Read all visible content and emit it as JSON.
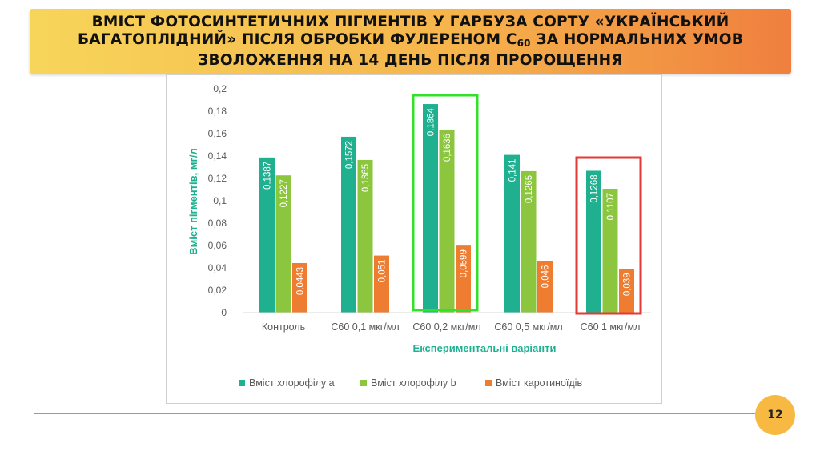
{
  "slide": {
    "title_prefix": "Вміст фотосинтетичних пігментів у гарбуза сорту «Український багатоплідний» після обробки фулереном С",
    "title_subscript": "60",
    "title_suffix": " за нормальних умов зволоження на 14 день після пророщення",
    "page_number": "12"
  },
  "chart_data": {
    "type": "bar",
    "categories": [
      "Контроль",
      "С60 0,1 мкг/мл",
      "С60 0,2 мкг/мл",
      "С60 0,5 мкг/мл",
      "С60 1 мкг/мл"
    ],
    "series": [
      {
        "name": "Вміст хлорофілу а",
        "values": [
          0.1387,
          0.1572,
          0.1864,
          0.141,
          0.1268
        ],
        "labels": [
          "0,1387",
          "0,1572",
          "0,1864",
          "0,141",
          "0,1268"
        ],
        "color": "#1fb18f"
      },
      {
        "name": "Вміст хлорофілу b",
        "values": [
          0.1227,
          0.1365,
          0.1636,
          0.1265,
          0.1107
        ],
        "labels": [
          "0,1227",
          "0,1365",
          "0,1636",
          "0,1265",
          "0,1107"
        ],
        "color": "#8cc63f"
      },
      {
        "name": "Вміст каротиноїдів",
        "values": [
          0.0443,
          0.051,
          0.0599,
          0.046,
          0.039
        ],
        "labels": [
          "0,0443",
          "0,051",
          "0,0599",
          "0,046",
          "0,039"
        ],
        "color": "#ee7d31"
      }
    ],
    "xlabel": "Експериментальні варіанти",
    "ylabel": "Вміст пігментів, мг/л",
    "ylim": [
      0,
      0.2
    ],
    "yticks": [
      0,
      0.02,
      0.04,
      0.06,
      0.08,
      0.1,
      0.12,
      0.14,
      0.16,
      0.18,
      0.2
    ],
    "ytick_labels": [
      "0",
      "0,02",
      "0,04",
      "0,06",
      "0,08",
      "0,1",
      "0,12",
      "0,14",
      "0,16",
      "0,18",
      "0,2"
    ],
    "grid": false,
    "legend_position": "bottom",
    "highlights": [
      {
        "category": "С60 0,2 мкг/мл",
        "color": "#33e02a"
      },
      {
        "category": "С60 1 мкг/мл",
        "color": "#e53935"
      }
    ],
    "axis_label_color": "#1fb18f"
  }
}
